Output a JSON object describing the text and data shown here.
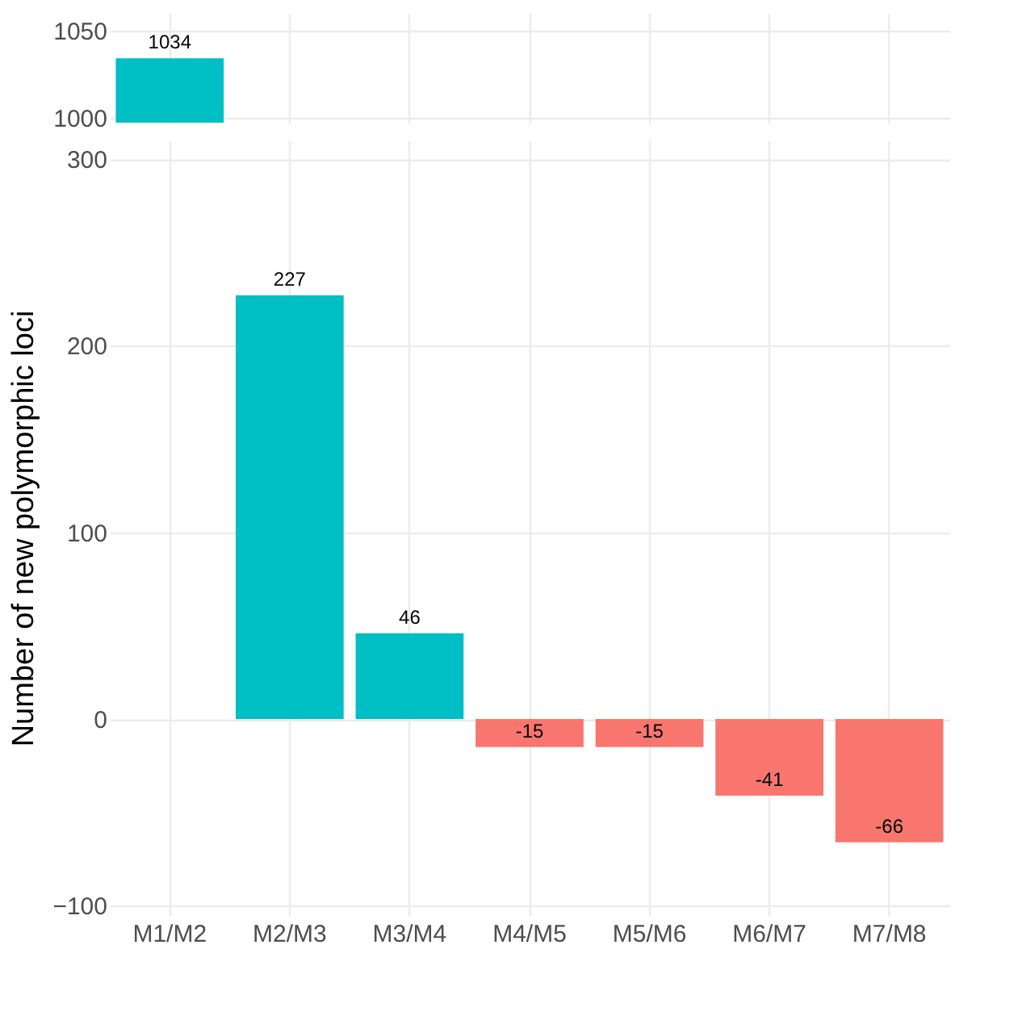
{
  "chart_data": [
    {
      "type": "bar",
      "values": [
        1034,
        null,
        null,
        null,
        null,
        null,
        null
      ],
      "colors": [
        "#00bfc4",
        "#00bfc4",
        "#00bfc4",
        "#f8766d",
        "#f8766d",
        "#f8766d",
        "#f8766d"
      ],
      "ylim": [
        997,
        1060
      ],
      "yticks": [
        1000,
        1050
      ],
      "grid": true,
      "data_labels": true,
      "tick_labels": "y"
    },
    {
      "type": "bar",
      "categories": [
        "M1/M2",
        "M2/M3",
        "M3/M4",
        "M4/M5",
        "M5/M6",
        "M6/M7",
        "M7/M8"
      ],
      "values": [
        null,
        227,
        46,
        -15,
        -15,
        -41,
        -66
      ],
      "colors": [
        "#00bfc4",
        "#00bfc4",
        "#00bfc4",
        "#f8766d",
        "#f8766d",
        "#f8766d",
        "#f8766d"
      ],
      "ylabel": "Number of new polymorphic loci",
      "ylim": [
        -105,
        310
      ],
      "yticks": [
        -100,
        0,
        100,
        200,
        300
      ],
      "grid": true,
      "data_labels": true
    }
  ]
}
